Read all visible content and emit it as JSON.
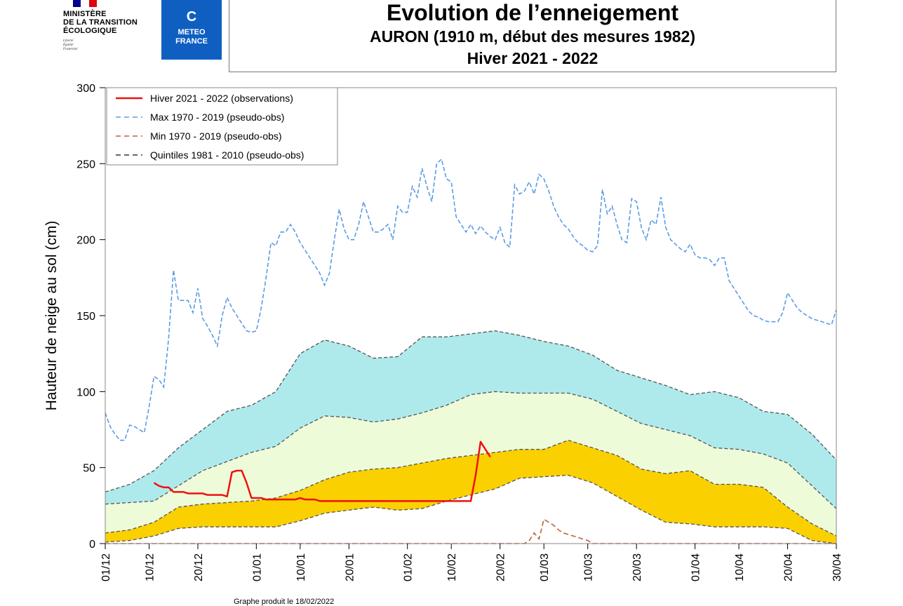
{
  "logos": {
    "ministry": [
      "MINISTÈRE",
      "DE LA TRANSITION",
      "ÉCOLOGIQUE"
    ],
    "motto": [
      "Liberté",
      "Égalité",
      "Fraternité"
    ],
    "meteo": [
      "METEO",
      "FRANCE"
    ],
    "meteo_mark": "C",
    "flag_colors": [
      "#000091",
      "#ffffff",
      "#e1000f"
    ]
  },
  "header": {
    "title": "Evolution de l’enneigement",
    "subtitle": "AURON (1910 m, début des mesures 1982)",
    "season": "Hiver 2021 - 2022"
  },
  "footer": "Graphe produit le 18/02/2022",
  "chart_data": {
    "type": "area",
    "ylabel": "Hauteur de neige au sol (cm)",
    "xlabel": "",
    "ylim": [
      0,
      300
    ],
    "yticks": [
      0,
      50,
      100,
      150,
      200,
      250,
      300
    ],
    "xlim": [
      0,
      150
    ],
    "xticks": [
      {
        "day": 0,
        "label": "01/12"
      },
      {
        "day": 9,
        "label": "10/12"
      },
      {
        "day": 19,
        "label": "20/12"
      },
      {
        "day": 31,
        "label": "01/01"
      },
      {
        "day": 40,
        "label": "10/01"
      },
      {
        "day": 50,
        "label": "20/01"
      },
      {
        "day": 62,
        "label": "01/02"
      },
      {
        "day": 71,
        "label": "10/02"
      },
      {
        "day": 81,
        "label": "20/02"
      },
      {
        "day": 90,
        "label": "01/03"
      },
      {
        "day": 99,
        "label": "10/03"
      },
      {
        "day": 109,
        "label": "20/03"
      },
      {
        "day": 121,
        "label": "01/04"
      },
      {
        "day": 130,
        "label": "10/04"
      },
      {
        "day": 140,
        "label": "20/04"
      },
      {
        "day": 150,
        "label": "30/04"
      }
    ],
    "legend": [
      {
        "label": "Hiver 2021 - 2022 (observations)",
        "color": "#ee1111",
        "style": "solid"
      },
      {
        "label": "Max 1970 - 2019 (pseudo-obs)",
        "color": "#5b9be6",
        "style": "dashed"
      },
      {
        "label": "Min 1970 - 2019 (pseudo-obs)",
        "color": "#c0623a",
        "style": "dashed"
      },
      {
        "label": "Quintiles 1981 - 2010 (pseudo-obs)",
        "color": "#333333",
        "style": "dashed"
      }
    ],
    "legend_position": "top-left",
    "band_colors": [
      "#fad000",
      "#eefbd9",
      "#aeeaec"
    ],
    "quintile_days": [
      0,
      5,
      10,
      15,
      20,
      25,
      30,
      35,
      40,
      45,
      50,
      55,
      60,
      65,
      70,
      75,
      80,
      85,
      90,
      95,
      100,
      105,
      110,
      115,
      120,
      125,
      130,
      135,
      140,
      145,
      150
    ],
    "quintiles": [
      {
        "name": "Q1",
        "values": [
          7,
          9,
          14,
          24,
          26,
          27,
          28,
          30,
          35,
          42,
          47,
          49,
          50,
          53,
          56,
          58,
          60,
          62,
          62,
          68,
          63,
          58,
          49,
          46,
          48,
          39,
          39,
          37,
          24,
          13,
          5
        ]
      },
      {
        "name": "Q2",
        "values": [
          26,
          27,
          28,
          38,
          48,
          54,
          60,
          64,
          76,
          84,
          83,
          80,
          82,
          86,
          91,
          98,
          100,
          99,
          99,
          99,
          95,
          87,
          79,
          75,
          71,
          63,
          62,
          59,
          53,
          38,
          23
        ]
      },
      {
        "name": "Q3",
        "values": [
          34,
          39,
          48,
          63,
          75,
          87,
          91,
          100,
          125,
          134,
          130,
          122,
          123,
          136,
          136,
          138,
          140,
          137,
          133,
          130,
          124,
          114,
          109,
          104,
          98,
          100,
          96,
          87,
          85,
          72,
          55
        ]
      },
      {
        "name": "Q4",
        "values": [
          1,
          2,
          5,
          10,
          11,
          11,
          11,
          11,
          15,
          20,
          22,
          24,
          22,
          23,
          28,
          32,
          36,
          43,
          44,
          45,
          40,
          31,
          22,
          14,
          13,
          11,
          11,
          11,
          10,
          2,
          0
        ]
      }
    ],
    "max": {
      "days": [
        0,
        1,
        2,
        3,
        4,
        5,
        6,
        7,
        8,
        9,
        10,
        11,
        12,
        13,
        14,
        15,
        16,
        17,
        18,
        19,
        20,
        21,
        22,
        23,
        24,
        25,
        26,
        27,
        28,
        29,
        30,
        31,
        32,
        33,
        34,
        35,
        36,
        37,
        38,
        39,
        40,
        41,
        42,
        43,
        44,
        45,
        46,
        47,
        48,
        49,
        50,
        51,
        52,
        53,
        54,
        55,
        56,
        57,
        58,
        59,
        60,
        61,
        62,
        63,
        64,
        65,
        66,
        67,
        68,
        69,
        70,
        71,
        72,
        73,
        74,
        75,
        76,
        77,
        78,
        79,
        80,
        81,
        82,
        83,
        84,
        85,
        86,
        87,
        88,
        89,
        90,
        91,
        92,
        93,
        94,
        95,
        96,
        97,
        98,
        99,
        100,
        101,
        102,
        103,
        104,
        105,
        106,
        107,
        108,
        109,
        110,
        111,
        112,
        113,
        114,
        115,
        116,
        117,
        118,
        119,
        120,
        121,
        122,
        123,
        124,
        125,
        126,
        127,
        128,
        129,
        130,
        131,
        132,
        133,
        134,
        135,
        136,
        137,
        138,
        139,
        140,
        141,
        142,
        143,
        144,
        145,
        146,
        147,
        148,
        149,
        150
      ],
      "values": [
        86,
        77,
        72,
        68,
        68,
        78,
        77,
        75,
        73,
        90,
        110,
        108,
        103,
        135,
        180,
        160,
        160,
        160,
        152,
        168,
        148,
        143,
        137,
        130,
        150,
        162,
        155,
        150,
        145,
        140,
        139,
        140,
        155,
        175,
        198,
        196,
        205,
        205,
        210,
        205,
        198,
        193,
        188,
        183,
        178,
        170,
        178,
        200,
        220,
        207,
        200,
        200,
        210,
        225,
        215,
        205,
        205,
        207,
        210,
        200,
        222,
        218,
        218,
        235,
        228,
        247,
        235,
        225,
        250,
        253,
        240,
        238,
        215,
        210,
        205,
        210,
        204,
        209,
        205,
        202,
        200,
        208,
        198,
        195,
        236,
        230,
        232,
        238,
        230,
        243,
        240,
        232,
        222,
        215,
        210,
        207,
        202,
        198,
        196,
        193,
        192,
        196,
        233,
        217,
        222,
        210,
        200,
        198,
        227,
        225,
        208,
        200,
        213,
        210,
        228,
        208,
        200,
        197,
        194,
        192,
        197,
        190,
        188,
        188,
        187,
        183,
        188,
        188,
        173,
        168,
        163,
        158,
        153,
        150,
        149,
        147,
        146,
        146,
        146,
        152,
        165,
        160,
        155,
        152,
        150,
        148,
        147,
        146,
        145,
        144,
        154
      ]
    },
    "min": {
      "days": [
        0,
        86,
        87,
        88,
        89,
        90,
        91,
        92,
        93,
        94,
        95,
        96,
        97,
        98,
        99,
        100,
        101,
        102,
        150
      ],
      "values": [
        0,
        0,
        2,
        7,
        3,
        16,
        14,
        12,
        9,
        7,
        6,
        5,
        4,
        3,
        2,
        0,
        0,
        0,
        0
      ]
    },
    "observations": {
      "days": [
        10,
        11,
        12,
        13,
        14,
        15,
        16,
        17,
        18,
        19,
        20,
        21,
        22,
        23,
        24,
        25,
        26,
        27,
        28,
        29,
        30,
        31,
        32,
        33,
        34,
        35,
        36,
        37,
        38,
        39,
        40,
        41,
        42,
        43,
        44,
        45,
        75,
        76,
        77,
        78,
        79
      ],
      "values": [
        40,
        38,
        37,
        37,
        34,
        34,
        34,
        33,
        33,
        33,
        33,
        32,
        32,
        32,
        32,
        31,
        47,
        48,
        48,
        40,
        30,
        30,
        30,
        29,
        29,
        29,
        29,
        29,
        29,
        29,
        30,
        29,
        29,
        29,
        28,
        28,
        28,
        45,
        67,
        62,
        57
      ]
    }
  }
}
